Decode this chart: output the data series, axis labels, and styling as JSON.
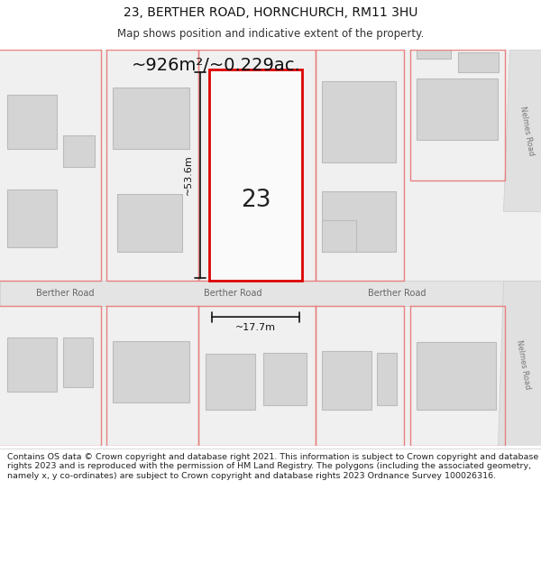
{
  "title_line1": "23, BERTHER ROAD, HORNCHURCH, RM11 3HU",
  "title_line2": "Map shows position and indicative extent of the property.",
  "area_text": "~926m²/~0.229ac.",
  "plot_number": "23",
  "dim_height": "~53.6m",
  "dim_width": "~17.7m",
  "road_label": "Berther Road",
  "road_label2": "Nelmes Road",
  "footer_text": "Contains OS data © Crown copyright and database right 2021. This information is subject to Crown copyright and database rights 2023 and is reproduced with the permission of HM Land Registry. The polygons (including the associated geometry, namely x, y co-ordinates) are subject to Crown copyright and database rights 2023 Ordnance Survey 100026316.",
  "bg_color": "#ffffff",
  "map_bg": "#f0f0f0",
  "plot_outline_color": "#dd0000",
  "building_color": "#d4d4d4",
  "building_outline": "#bbbbbb",
  "pink_line_color": "#e88080",
  "dim_line_color": "#111111",
  "road_band_color": "#e4e4e4",
  "road_band_outline": "#cccccc",
  "nelmes_road_color": "#e0e0e0"
}
